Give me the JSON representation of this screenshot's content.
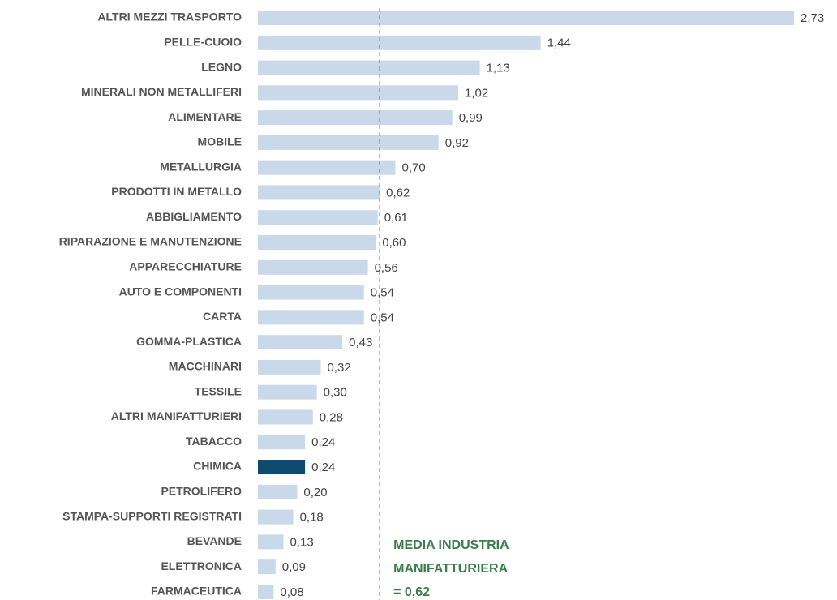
{
  "chart_data": {
    "type": "bar",
    "orientation": "horizontal",
    "categories": [
      "ALTRI MEZZI TRASPORTO",
      "PELLE-CUOIO",
      "LEGNO",
      "MINERALI NON METALLIFERI",
      "ALIMENTARE",
      "MOBILE",
      "METALLURGIA",
      "PRODOTTI IN METALLO",
      "ABBIGLIAMENTO",
      "RIPARAZIONE E MANUTENZIONE",
      "APPARECCHIATURE",
      "AUTO E COMPONENTI",
      "CARTA",
      "GOMMA-PLASTICA",
      "MACCHINARI",
      "TESSILE",
      "ALTRI MANIFATTURIERI",
      "TABACCO",
      "CHIMICA",
      "PETROLIFERO",
      "STAMPA-SUPPORTI REGISTRATI",
      "BEVANDE",
      "ELETTRONICA",
      "FARMACEUTICA"
    ],
    "values": [
      2.73,
      1.44,
      1.13,
      1.02,
      0.99,
      0.92,
      0.7,
      0.62,
      0.61,
      0.6,
      0.56,
      0.54,
      0.54,
      0.43,
      0.32,
      0.3,
      0.28,
      0.24,
      0.24,
      0.2,
      0.18,
      0.13,
      0.09,
      0.08
    ],
    "value_labels": [
      "2,73",
      "1,44",
      "1,13",
      "1,02",
      "0,99",
      "0,92",
      "0,70",
      "0,62",
      "0,61",
      "0,60",
      "0,56",
      "0,54",
      "0,54",
      "0,43",
      "0,32",
      "0,30",
      "0,28",
      "0,24",
      "0,24",
      "0,20",
      "0,18",
      "0,13",
      "0,09",
      "0,08"
    ],
    "colors": [
      "#c9d9ea",
      "#c9d9ea",
      "#c9d9ea",
      "#c9d9ea",
      "#c9d9ea",
      "#c9d9ea",
      "#c9d9ea",
      "#c9d9ea",
      "#c9d9ea",
      "#c9d9ea",
      "#c9d9ea",
      "#c9d9ea",
      "#c9d9ea",
      "#c9d9ea",
      "#c9d9ea",
      "#c9d9ea",
      "#c9d9ea",
      "#c9d9ea",
      "#0d4a6e",
      "#c9d9ea",
      "#c9d9ea",
      "#c9d9ea",
      "#c9d9ea",
      "#c9d9ea"
    ],
    "reference_line": {
      "value": 0.62,
      "color": "#4f8a6a",
      "label_lines": [
        "MEDIA INDUSTRIA",
        "MANIFATTURIERA",
        "= 0,62"
      ],
      "label_color": "#3a7d4a"
    }
  }
}
